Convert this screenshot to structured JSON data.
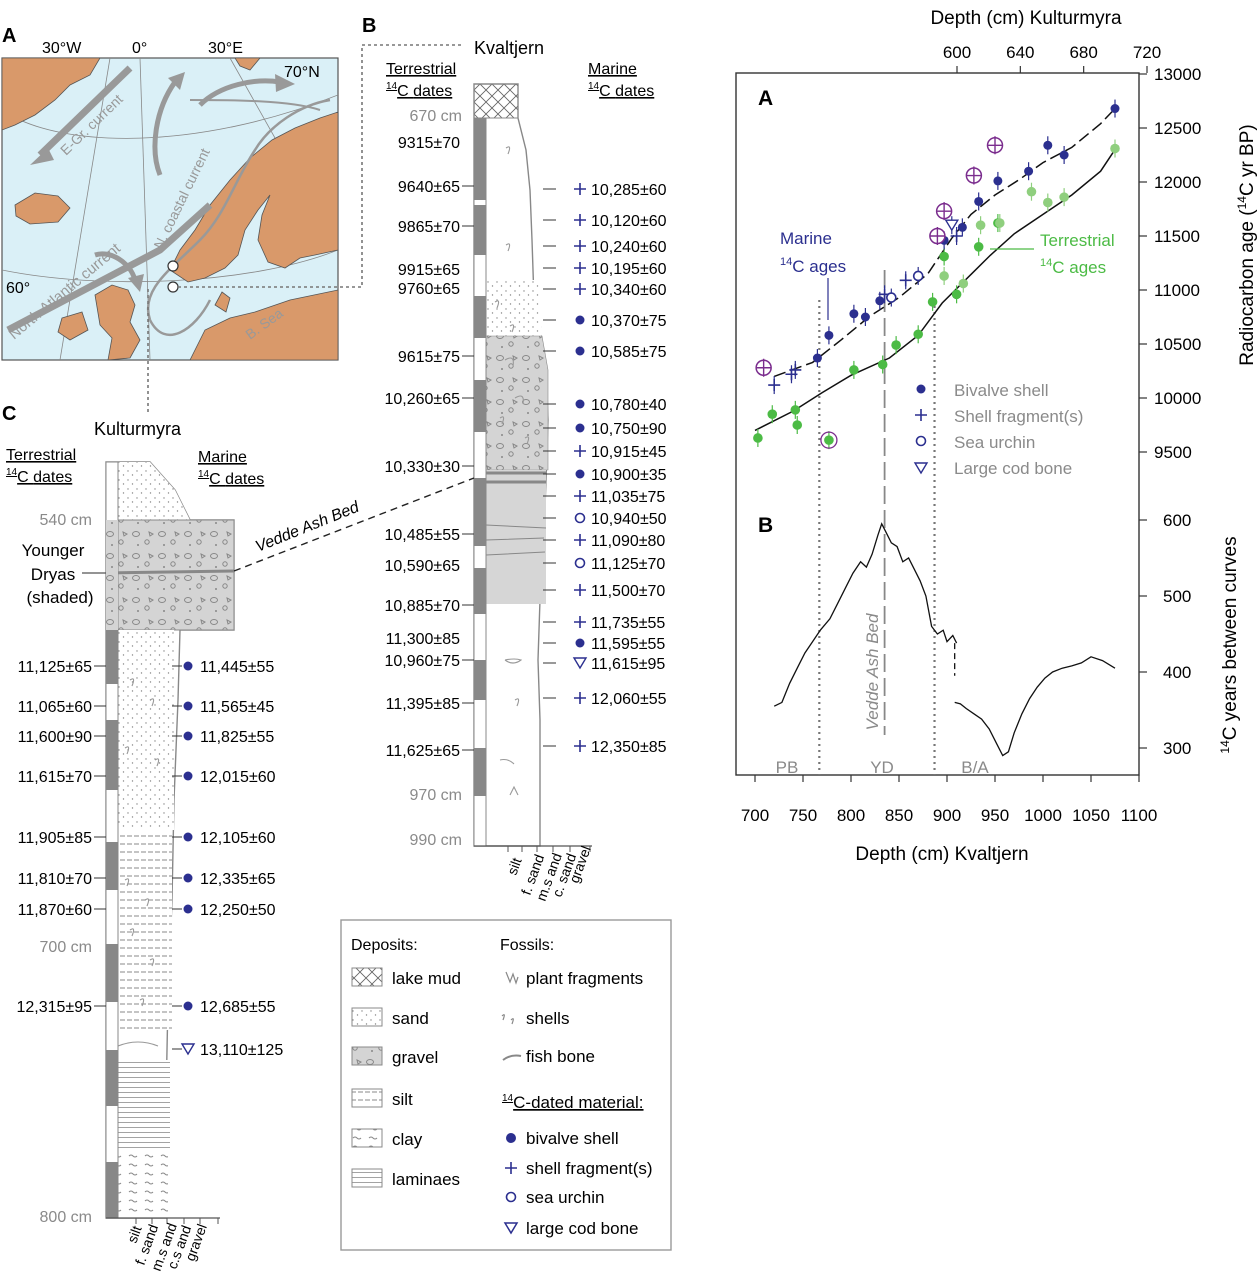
{
  "panels": {
    "map": {
      "letter": "A",
      "lon_labels": [
        "30°W",
        "0°",
        "30°E"
      ],
      "lat_labels": [
        "70°N",
        "60°"
      ],
      "currents": [
        "E-Gr. current",
        "North Atlantic current",
        "N. coastal current"
      ],
      "sea_label": "B. Sea",
      "water_color": "#daf0f7",
      "land_color": "#d9996a"
    },
    "kvaltjern": {
      "letter": "B",
      "site": "Kvaltjern",
      "terrestrial_header": "Terrestrial",
      "marine_header": "Marine",
      "dates_word": "dates",
      "depths": [
        "670 cm",
        "970 cm",
        "990 cm"
      ],
      "terrestrial": [
        "9315±70",
        "9640±65",
        "9865±70",
        "9915±65",
        "9760±65",
        "9615±75",
        "10,260±65",
        "10,330±30",
        "10,485±55",
        "10,590±65",
        "10,885±70",
        "11,300±85",
        "10,960±75",
        "11,395±85",
        "11,625±65"
      ],
      "marine": [
        {
          "sym": "plus",
          "text": "10,285±60"
        },
        {
          "sym": "plus",
          "text": "10,120±60"
        },
        {
          "sym": "plus",
          "text": "10,240±60"
        },
        {
          "sym": "plus",
          "text": "10,195±60"
        },
        {
          "sym": "plus",
          "text": "10,340±60"
        },
        {
          "sym": "dot",
          "text": "10,370±75"
        },
        {
          "sym": "dot",
          "text": "10,585±75"
        },
        {
          "sym": "dot",
          "text": "10,780±40"
        },
        {
          "sym": "dot",
          "text": "10,750±90"
        },
        {
          "sym": "plus",
          "text": "10,915±45"
        },
        {
          "sym": "dot",
          "text": "10,900±35"
        },
        {
          "sym": "plus",
          "text": "11,035±75"
        },
        {
          "sym": "circle",
          "text": "10,940±50"
        },
        {
          "sym": "plus",
          "text": "11,090±80"
        },
        {
          "sym": "circle",
          "text": "11,125±70"
        },
        {
          "sym": "plus",
          "text": "11,500±70"
        },
        {
          "sym": "plus",
          "text": "11,735±55"
        },
        {
          "sym": "dot",
          "text": "11,595±55"
        },
        {
          "sym": "tri",
          "text": "11,615±95"
        },
        {
          "sym": "plus",
          "text": "12,060±55"
        },
        {
          "sym": "plus",
          "text": "12,350±85"
        }
      ],
      "grain_labels": [
        "silt",
        "f. sand",
        "m.s and",
        "c. sand",
        "gravel"
      ],
      "ash_label": "Vedde Ash Bed"
    },
    "kulturmyra": {
      "letter": "C",
      "site": "Kulturmyra",
      "terrestrial_header": "Terrestrial",
      "marine_header": "Marine",
      "dates_word": "dates",
      "depths": [
        "540 cm",
        "700 cm",
        "800 cm"
      ],
      "yd_label": [
        "Younger",
        "Dryas",
        "(shaded)"
      ],
      "terrestrial": [
        "11,125±65",
        "11,065±60",
        "11,600±90",
        "11,615±70",
        "11,905±85",
        "11,810±70",
        "11,870±60",
        "12,315±95"
      ],
      "marine": [
        {
          "sym": "dot",
          "text": "11,445±55"
        },
        {
          "sym": "dot",
          "text": "11,565±45"
        },
        {
          "sym": "dot",
          "text": "11,825±55"
        },
        {
          "sym": "dot",
          "text": "12,015±60"
        },
        {
          "sym": "dot",
          "text": "12,105±60"
        },
        {
          "sym": "dot",
          "text": "12,335±65"
        },
        {
          "sym": "dot",
          "text": "12,250±50"
        },
        {
          "sym": "dot",
          "text": "12,685±55"
        },
        {
          "sym": "tri",
          "text": "13,110±125"
        }
      ],
      "grain_labels": [
        "silt",
        "f. sand",
        "m.s and",
        "c.s and",
        "gravel"
      ]
    },
    "legend": {
      "deposits_title": "Deposits:",
      "fossils_title": "Fossils:",
      "deposits": [
        "lake mud",
        "sand",
        "gravel",
        "silt",
        "clay",
        "laminaes"
      ],
      "fossils": [
        "plant fragments",
        "shells",
        "fish bone"
      ],
      "dated_title": "C-dated material:",
      "dated": [
        "bivalve shell",
        "shell fragment(s)",
        "sea urchin",
        "large cod bone"
      ]
    }
  },
  "chart_data": [
    {
      "type": "scatter",
      "panel": "A",
      "title": "",
      "xlabel": "Depth (cm) Kvaltjern",
      "x2label": "Depth (cm) Kulturmyra",
      "ylabel": "Radiocarbon age (14C yr BP)",
      "xlim": [
        690,
        1100
      ],
      "ylim": [
        9200,
        13000
      ],
      "x_ticks": [
        700,
        750,
        800,
        850,
        900,
        950,
        1000,
        1050,
        1100
      ],
      "x2_ticks": [
        600,
        640,
        680,
        720
      ],
      "y_ticks": [
        9500,
        10000,
        10500,
        11000,
        11500,
        12000,
        12500,
        13000
      ],
      "series_labels": {
        "marine": [
          "Marine",
          "C ages"
        ],
        "terrestrial": [
          "Terrestrial",
          "C ages"
        ]
      },
      "legend": [
        "Bivalve shell",
        "Shell fragment(s)",
        "Sea urchin",
        "Large cod bone"
      ],
      "colors": {
        "marine": "#2b2f8f",
        "terrestrial": "#4cbb45",
        "terrestrial_light": "#8fcf7e",
        "outlier": "#7b2d8e"
      },
      "marine_points": [
        {
          "x": 720,
          "y": 10120,
          "s": "plus"
        },
        {
          "x": 738,
          "y": 10220,
          "s": "plus"
        },
        {
          "x": 742,
          "y": 10260,
          "s": "plus"
        },
        {
          "x": 765,
          "y": 10370,
          "s": "dot"
        },
        {
          "x": 777,
          "y": 10580,
          "s": "dot"
        },
        {
          "x": 803,
          "y": 10780,
          "s": "dot"
        },
        {
          "x": 815,
          "y": 10750,
          "s": "dot"
        },
        {
          "x": 830,
          "y": 10900,
          "s": "dot"
        },
        {
          "x": 835,
          "y": 10960,
          "s": "plus"
        },
        {
          "x": 842,
          "y": 10930,
          "s": "circle"
        },
        {
          "x": 857,
          "y": 11090,
          "s": "plus"
        },
        {
          "x": 870,
          "y": 11130,
          "s": "circle"
        },
        {
          "x": 897,
          "y": 11460,
          "s": "dot"
        },
        {
          "x": 905,
          "y": 11600,
          "s": "tri"
        },
        {
          "x": 910,
          "y": 11500,
          "s": "plus"
        },
        {
          "x": 916,
          "y": 11580,
          "s": "dot"
        },
        {
          "x": 933,
          "y": 11820,
          "s": "dot"
        },
        {
          "x": 953,
          "y": 12010,
          "s": "dot"
        },
        {
          "x": 985,
          "y": 12100,
          "s": "dot"
        },
        {
          "x": 1005,
          "y": 12340,
          "s": "dot"
        },
        {
          "x": 1022,
          "y": 12250,
          "s": "dot"
        },
        {
          "x": 1075,
          "y": 12680,
          "s": "dot"
        }
      ],
      "marine_outliers": [
        {
          "x": 709,
          "y": 10280
        },
        {
          "x": 890,
          "y": 11500
        },
        {
          "x": 897,
          "y": 11730
        },
        {
          "x": 928,
          "y": 12060
        },
        {
          "x": 950,
          "y": 12340
        }
      ],
      "terrestrial_points": [
        {
          "x": 703,
          "y": 9630,
          "c": "d"
        },
        {
          "x": 718,
          "y": 9850,
          "c": "d"
        },
        {
          "x": 742,
          "y": 9890,
          "c": "d"
        },
        {
          "x": 744,
          "y": 9750,
          "c": "d"
        },
        {
          "x": 777,
          "y": 9610,
          "c": "o"
        },
        {
          "x": 803,
          "y": 10260,
          "c": "d"
        },
        {
          "x": 833,
          "y": 10310,
          "c": "d"
        },
        {
          "x": 847,
          "y": 10490,
          "c": "d"
        },
        {
          "x": 870,
          "y": 10590,
          "c": "d"
        },
        {
          "x": 885,
          "y": 10890,
          "c": "d"
        },
        {
          "x": 897,
          "y": 11310,
          "c": "d"
        },
        {
          "x": 897,
          "y": 11130,
          "c": "l"
        },
        {
          "x": 910,
          "y": 10960,
          "c": "d"
        },
        {
          "x": 917,
          "y": 11060,
          "c": "l"
        },
        {
          "x": 933,
          "y": 11400,
          "c": "d"
        },
        {
          "x": 935,
          "y": 11600,
          "c": "l"
        },
        {
          "x": 953,
          "y": 11620,
          "c": "d"
        },
        {
          "x": 955,
          "y": 11620,
          "c": "l"
        },
        {
          "x": 988,
          "y": 11910,
          "c": "l"
        },
        {
          "x": 1005,
          "y": 11810,
          "c": "l"
        },
        {
          "x": 1022,
          "y": 11860,
          "c": "l"
        },
        {
          "x": 1075,
          "y": 12310,
          "c": "l"
        }
      ],
      "marine_curve": [
        [
          720,
          10200
        ],
        [
          760,
          10330
        ],
        [
          790,
          10540
        ],
        [
          820,
          10760
        ],
        [
          850,
          10930
        ],
        [
          880,
          11150
        ],
        [
          905,
          11480
        ],
        [
          925,
          11700
        ],
        [
          950,
          11880
        ],
        [
          975,
          12020
        ],
        [
          1000,
          12180
        ],
        [
          1030,
          12320
        ],
        [
          1060,
          12540
        ],
        [
          1075,
          12680
        ]
      ],
      "terrestrial_curve": [
        [
          700,
          9700
        ],
        [
          740,
          9880
        ],
        [
          770,
          10050
        ],
        [
          800,
          10210
        ],
        [
          840,
          10370
        ],
        [
          870,
          10580
        ],
        [
          895,
          10880
        ],
        [
          920,
          11100
        ],
        [
          945,
          11320
        ],
        [
          970,
          11520
        ],
        [
          1000,
          11700
        ],
        [
          1030,
          11880
        ],
        [
          1060,
          12100
        ],
        [
          1075,
          12300
        ]
      ]
    },
    {
      "type": "line",
      "panel": "B",
      "title": "",
      "xlabel": "Depth (cm) Kvaltjern",
      "ylabel": "14C years between curves",
      "ylim": [
        250,
        600
      ],
      "y_ticks": [
        300,
        400,
        500,
        600
      ],
      "zone_labels": [
        "PB",
        "YD",
        "B/A"
      ],
      "ash_label": "Vedde Ash Bed",
      "zone_boundaries": [
        767,
        887
      ],
      "ash_depth": 835,
      "series": [
        {
          "name": "",
          "x": [
            720,
            728,
            736,
            744,
            752,
            760,
            768,
            778,
            786,
            794,
            802,
            810,
            816,
            822,
            828,
            832,
            836,
            842,
            848,
            854,
            860,
            866,
            872,
            878,
            884,
            890,
            896,
            900,
            906,
            910
          ],
          "values": [
            355,
            360,
            385,
            405,
            425,
            440,
            455,
            470,
            490,
            510,
            530,
            545,
            538,
            555,
            580,
            595,
            585,
            570,
            565,
            545,
            550,
            535,
            520,
            500,
            460,
            450,
            455,
            440,
            448,
            438
          ]
        },
        {
          "name": "",
          "x": [
            908,
            914,
            920,
            928,
            936,
            944,
            952,
            958,
            964,
            970,
            978,
            986,
            994,
            1002,
            1010,
            1020,
            1030,
            1040,
            1050,
            1062,
            1075
          ],
          "values": [
            360,
            358,
            352,
            345,
            338,
            325,
            305,
            290,
            295,
            320,
            345,
            365,
            380,
            392,
            400,
            405,
            408,
            412,
            420,
            415,
            405
          ]
        }
      ]
    }
  ]
}
